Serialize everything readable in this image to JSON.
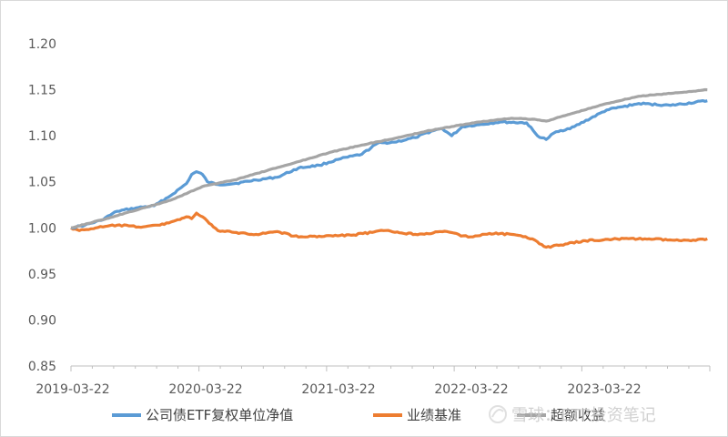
{
  "chart_data": {
    "type": "line",
    "title": "",
    "xlabel": "",
    "ylabel": "",
    "ylim": [
      0.85,
      1.2
    ],
    "y_ticks": [
      "0.85",
      "0.90",
      "0.95",
      "1.00",
      "1.05",
      "1.10",
      "1.15",
      "1.20"
    ],
    "x_ticks": [
      "2019-03-22",
      "2020-03-22",
      "2021-03-22",
      "2022-03-22",
      "2023-03-22"
    ],
    "grid": false,
    "legend_position": "bottom",
    "series": [
      {
        "name": "公司债ETF复权单位净值",
        "color": "#5b9bd5",
        "points": [
          [
            "2019-03-22",
            1.0
          ],
          [
            "2019-05-01",
            1.003
          ],
          [
            "2019-06-15",
            1.008
          ],
          [
            "2019-08-01",
            1.018
          ],
          [
            "2019-10-01",
            1.022
          ],
          [
            "2019-11-15",
            1.024
          ],
          [
            "2020-01-01",
            1.035
          ],
          [
            "2020-02-15",
            1.048
          ],
          [
            "2020-03-01",
            1.058
          ],
          [
            "2020-03-15",
            1.061
          ],
          [
            "2020-04-01",
            1.058
          ],
          [
            "2020-04-15",
            1.05
          ],
          [
            "2020-05-15",
            1.047
          ],
          [
            "2020-07-01",
            1.048
          ],
          [
            "2020-09-01",
            1.052
          ],
          [
            "2020-11-01",
            1.055
          ],
          [
            "2021-01-01",
            1.065
          ],
          [
            "2021-03-01",
            1.068
          ],
          [
            "2021-05-01",
            1.075
          ],
          [
            "2021-07-01",
            1.08
          ],
          [
            "2021-08-15",
            1.092
          ],
          [
            "2021-10-01",
            1.093
          ],
          [
            "2021-12-01",
            1.098
          ],
          [
            "2022-01-15",
            1.105
          ],
          [
            "2022-02-15",
            1.108
          ],
          [
            "2022-03-15",
            1.1
          ],
          [
            "2022-04-15",
            1.11
          ],
          [
            "2022-06-01",
            1.112
          ],
          [
            "2022-08-01",
            1.115
          ],
          [
            "2022-10-15",
            1.114
          ],
          [
            "2022-11-15",
            1.1
          ],
          [
            "2022-12-10",
            1.096
          ],
          [
            "2023-01-01",
            1.103
          ],
          [
            "2023-03-01",
            1.11
          ],
          [
            "2023-06-01",
            1.128
          ],
          [
            "2023-09-01",
            1.135
          ],
          [
            "2023-12-01",
            1.133
          ],
          [
            "2024-03-15",
            1.138
          ]
        ]
      },
      {
        "name": "业绩基准",
        "color": "#ed7d31",
        "points": [
          [
            "2019-03-22",
            1.0
          ],
          [
            "2019-04-15",
            0.997
          ],
          [
            "2019-06-01",
            1.0
          ],
          [
            "2019-08-01",
            1.003
          ],
          [
            "2019-10-01",
            1.001
          ],
          [
            "2019-12-01",
            1.003
          ],
          [
            "2020-01-15",
            1.008
          ],
          [
            "2020-02-15",
            1.012
          ],
          [
            "2020-03-01",
            1.01
          ],
          [
            "2020-03-15",
            1.016
          ],
          [
            "2020-04-01",
            1.012
          ],
          [
            "2020-04-20",
            1.005
          ],
          [
            "2020-05-15",
            0.997
          ],
          [
            "2020-07-01",
            0.995
          ],
          [
            "2020-09-01",
            0.993
          ],
          [
            "2020-11-01",
            0.996
          ],
          [
            "2021-01-01",
            0.99
          ],
          [
            "2021-03-01",
            0.991
          ],
          [
            "2021-06-01",
            0.992
          ],
          [
            "2021-09-01",
            0.997
          ],
          [
            "2021-12-01",
            0.993
          ],
          [
            "2022-03-01",
            0.996
          ],
          [
            "2022-05-01",
            0.99
          ],
          [
            "2022-07-01",
            0.994
          ],
          [
            "2022-09-01",
            0.993
          ],
          [
            "2022-11-01",
            0.988
          ],
          [
            "2022-12-10",
            0.979
          ],
          [
            "2023-01-15",
            0.981
          ],
          [
            "2023-04-01",
            0.986
          ],
          [
            "2023-07-01",
            0.988
          ],
          [
            "2023-10-01",
            0.988
          ],
          [
            "2024-01-01",
            0.986
          ],
          [
            "2024-03-15",
            0.988
          ]
        ]
      },
      {
        "name": "超额收益",
        "color": "#a5a5a5",
        "points": [
          [
            "2019-03-22",
            1.0
          ],
          [
            "2019-07-01",
            1.01
          ],
          [
            "2019-10-01",
            1.02
          ],
          [
            "2020-01-01",
            1.03
          ],
          [
            "2020-04-01",
            1.045
          ],
          [
            "2020-07-01",
            1.052
          ],
          [
            "2020-10-01",
            1.062
          ],
          [
            "2021-01-01",
            1.072
          ],
          [
            "2021-04-01",
            1.082
          ],
          [
            "2021-07-01",
            1.09
          ],
          [
            "2021-10-01",
            1.097
          ],
          [
            "2022-01-01",
            1.105
          ],
          [
            "2022-03-15",
            1.11
          ],
          [
            "2022-06-01",
            1.115
          ],
          [
            "2022-09-01",
            1.119
          ],
          [
            "2022-11-01",
            1.118
          ],
          [
            "2022-12-10",
            1.116
          ],
          [
            "2023-03-01",
            1.125
          ],
          [
            "2023-06-01",
            1.135
          ],
          [
            "2023-09-01",
            1.143
          ],
          [
            "2023-12-01",
            1.146
          ],
          [
            "2024-03-15",
            1.15
          ]
        ]
      }
    ]
  },
  "watermark": "雪球：ETF投资笔记"
}
